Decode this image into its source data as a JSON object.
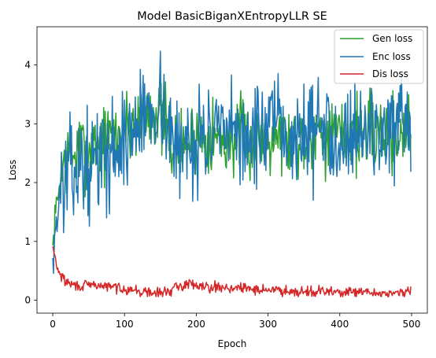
{
  "chart_data": {
    "type": "line",
    "title": "Model BasicBiganXEntropyLLR SE",
    "xlabel": "Epoch",
    "ylabel": "Loss",
    "xlim": [
      -22,
      522
    ],
    "ylim": [
      -0.22,
      4.65
    ],
    "x_ticks": [
      0,
      100,
      200,
      300,
      400,
      500
    ],
    "y_ticks": [
      0,
      1,
      2,
      3,
      4
    ],
    "legend_position": "top-right",
    "series": [
      {
        "name": "Gen loss",
        "color": "#2ca02c",
        "x": [
          0,
          5,
          10,
          15,
          20,
          25,
          30,
          40,
          50,
          60,
          70,
          80,
          90,
          100,
          110,
          120,
          130,
          140,
          150,
          160,
          170,
          180,
          190,
          200,
          210,
          220,
          230,
          240,
          250,
          260,
          270,
          280,
          290,
          300,
          310,
          320,
          330,
          340,
          350,
          360,
          370,
          380,
          390,
          400,
          410,
          420,
          430,
          440,
          450,
          460,
          470,
          480,
          490,
          499
        ],
        "values": [
          0.85,
          1.6,
          2.0,
          2.3,
          2.4,
          2.5,
          2.45,
          2.6,
          2.55,
          2.7,
          2.65,
          2.75,
          2.8,
          2.9,
          3.0,
          3.1,
          3.2,
          3.3,
          3.1,
          2.9,
          2.6,
          2.6,
          2.7,
          2.8,
          2.85,
          2.8,
          2.75,
          2.7,
          2.75,
          2.8,
          2.75,
          2.7,
          2.8,
          2.85,
          2.9,
          2.8,
          2.75,
          2.7,
          2.8,
          2.85,
          2.9,
          2.8,
          2.75,
          2.8,
          2.85,
          2.9,
          2.8,
          2.85,
          2.8,
          2.9,
          2.85,
          2.8,
          2.85,
          3.1
        ]
      },
      {
        "name": "Enc loss",
        "color": "#1f77b4",
        "x": [
          0,
          5,
          10,
          15,
          20,
          25,
          30,
          40,
          50,
          60,
          70,
          80,
          90,
          100,
          110,
          120,
          130,
          140,
          150,
          160,
          170,
          180,
          190,
          200,
          210,
          220,
          230,
          240,
          250,
          260,
          270,
          280,
          290,
          300,
          310,
          320,
          330,
          340,
          350,
          360,
          370,
          380,
          390,
          400,
          410,
          420,
          430,
          440,
          450,
          460,
          470,
          480,
          490,
          499
        ],
        "values": [
          0.75,
          1.3,
          1.8,
          2.0,
          2.1,
          2.15,
          2.2,
          2.3,
          2.25,
          2.4,
          2.45,
          2.5,
          2.6,
          2.7,
          2.85,
          3.0,
          3.2,
          3.3,
          3.4,
          3.0,
          2.5,
          2.6,
          2.7,
          2.75,
          2.8,
          2.85,
          2.75,
          2.7,
          2.8,
          2.85,
          2.8,
          2.75,
          2.85,
          2.9,
          2.95,
          2.85,
          2.8,
          2.75,
          2.85,
          2.9,
          2.95,
          2.85,
          2.8,
          2.85,
          2.9,
          2.95,
          2.85,
          2.9,
          2.85,
          2.95,
          2.9,
          2.85,
          2.9,
          2.5
        ]
      },
      {
        "name": "Dis loss",
        "color": "#d62728",
        "x": [
          0,
          3,
          6,
          10,
          15,
          20,
          25,
          30,
          40,
          50,
          60,
          70,
          80,
          90,
          100,
          110,
          120,
          130,
          140,
          150,
          160,
          170,
          180,
          190,
          200,
          210,
          220,
          230,
          240,
          250,
          260,
          270,
          280,
          290,
          300,
          310,
          320,
          330,
          340,
          350,
          360,
          370,
          380,
          390,
          400,
          410,
          420,
          430,
          440,
          450,
          460,
          470,
          480,
          490,
          499
        ],
        "values": [
          0.9,
          0.75,
          0.55,
          0.45,
          0.35,
          0.3,
          0.28,
          0.25,
          0.24,
          0.25,
          0.26,
          0.24,
          0.23,
          0.22,
          0.2,
          0.18,
          0.15,
          0.13,
          0.12,
          0.12,
          0.15,
          0.2,
          0.25,
          0.28,
          0.27,
          0.25,
          0.23,
          0.22,
          0.22,
          0.21,
          0.2,
          0.2,
          0.19,
          0.18,
          0.18,
          0.17,
          0.17,
          0.16,
          0.16,
          0.15,
          0.15,
          0.15,
          0.14,
          0.14,
          0.14,
          0.13,
          0.13,
          0.13,
          0.13,
          0.12,
          0.12,
          0.12,
          0.12,
          0.12,
          0.16
        ]
      }
    ]
  }
}
